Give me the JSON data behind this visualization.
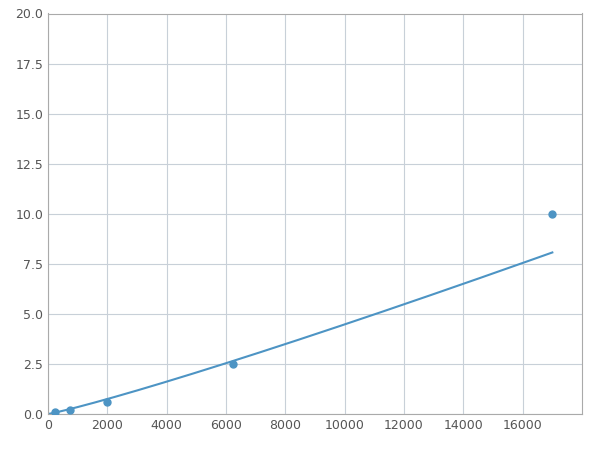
{
  "x_points": [
    250,
    750,
    2000,
    6250,
    17000
  ],
  "y_points": [
    0.1,
    0.2,
    0.6,
    2.5,
    10.0
  ],
  "line_color": "#4d94c4",
  "marker_color": "#4d94c4",
  "background_color": "#ffffff",
  "grid_color": "#c8d0d8",
  "xlim": [
    0,
    18000
  ],
  "ylim": [
    0,
    20.0
  ],
  "xticks": [
    0,
    2000,
    4000,
    6000,
    8000,
    10000,
    12000,
    14000,
    16000
  ],
  "yticks": [
    0.0,
    2.5,
    5.0,
    7.5,
    10.0,
    12.5,
    15.0,
    17.5,
    20.0
  ],
  "marker_size": 5,
  "line_width": 1.5
}
